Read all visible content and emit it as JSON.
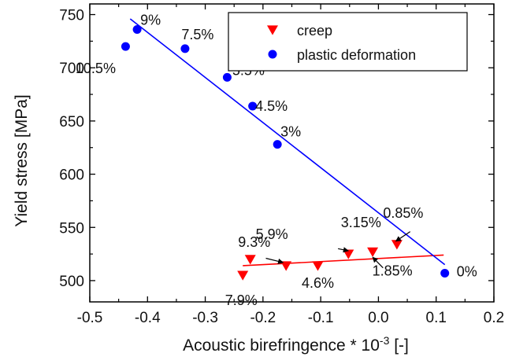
{
  "chart_data": {
    "type": "scatter",
    "xlabel": "Acoustic birefringence * 10",
    "xlabel_superscript": "-3",
    "xlabel_unit": " [-]",
    "ylabel": "Yield stress [MPa]",
    "xlim": [
      -0.5,
      0.2
    ],
    "ylim": [
      480,
      760
    ],
    "xticks": [
      -0.5,
      -0.4,
      -0.3,
      -0.2,
      -0.1,
      0.0,
      0.1,
      0.2
    ],
    "xtick_labels": [
      "-0.5",
      "-0.4",
      "-0.3",
      "-0.2",
      "-0.1",
      "0.0",
      "0.1",
      "0.2"
    ],
    "yticks": [
      500,
      550,
      600,
      650,
      700,
      750
    ],
    "ytick_labels": [
      "500",
      "550",
      "600",
      "650",
      "700",
      "750"
    ],
    "grid": false,
    "legend": "top-right",
    "series": [
      {
        "name": "creep",
        "marker": "triangle-down",
        "color": "#ff0000",
        "points": [
          {
            "x": -0.235,
            "y": 505,
            "label": "7.9%"
          },
          {
            "x": -0.222,
            "y": 520,
            "label": "9.3%"
          },
          {
            "x": -0.16,
            "y": 514,
            "label": "5.9%"
          },
          {
            "x": -0.105,
            "y": 514,
            "label": "4.6%"
          },
          {
            "x": -0.052,
            "y": 525,
            "label": "3.15%"
          },
          {
            "x": -0.01,
            "y": 527,
            "label": "1.85%"
          },
          {
            "x": 0.032,
            "y": 534,
            "label": "0.85%"
          }
        ],
        "fit": {
          "x": [
            -0.235,
            0.113
          ],
          "y": [
            514,
            524
          ]
        }
      },
      {
        "name": "plastic deformation",
        "marker": "circle",
        "color": "#0000ff",
        "points": [
          {
            "x": -0.438,
            "y": 720,
            "label": "10.5%"
          },
          {
            "x": -0.418,
            "y": 736,
            "label": "9%"
          },
          {
            "x": -0.335,
            "y": 718,
            "label": "7.5%"
          },
          {
            "x": -0.262,
            "y": 691,
            "label": "5.5%"
          },
          {
            "x": -0.218,
            "y": 664,
            "label": "4.5%"
          },
          {
            "x": -0.175,
            "y": 628,
            "label": "3%"
          },
          {
            "x": 0.115,
            "y": 507,
            "label": "0%"
          }
        ],
        "fit": {
          "x": [
            -0.43,
            0.115
          ],
          "y": [
            746,
            515
          ]
        }
      }
    ]
  }
}
